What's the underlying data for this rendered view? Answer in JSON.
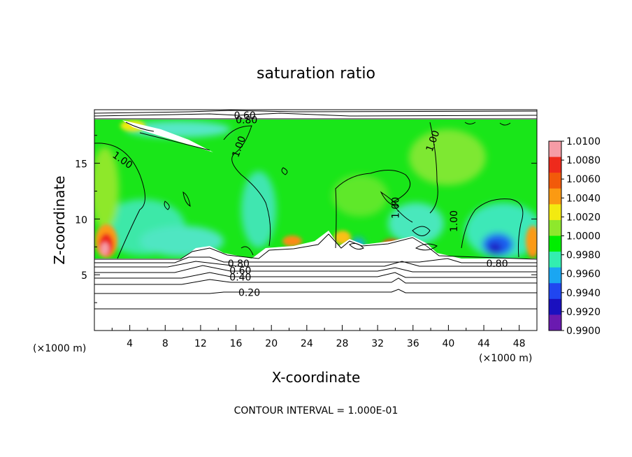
{
  "chart_data": {
    "type": "heatmap",
    "title": "saturation ratio",
    "xlabel": "X-coordinate",
    "ylabel": "Z-coordinate",
    "x_unit_label": "(×1000 m)",
    "y_unit_label": "(×1000 m)",
    "xlim": [
      0,
      50
    ],
    "ylim": [
      0,
      19.8
    ],
    "x_ticks": [
      4,
      8,
      12,
      16,
      20,
      24,
      28,
      32,
      36,
      40,
      44,
      48
    ],
    "y_ticks": [
      5,
      10,
      15
    ],
    "footer": "CONTOUR INTERVAL = 1.000E-01",
    "colorbar": {
      "labels": [
        "1.0100",
        "1.0080",
        "1.0060",
        "1.0040",
        "1.0020",
        "1.0000",
        "0.9980",
        "0.9960",
        "0.9940",
        "0.9920",
        "0.9900"
      ],
      "colors": [
        "#f59ca6",
        "#ee2a1c",
        "#f25a0a",
        "#fb9a12",
        "#f3ea10",
        "#8ee82c",
        "#00ee00",
        "#33eeb0",
        "#1aa6f2",
        "#2046f0",
        "#1a10bf",
        "#6a1ab0"
      ]
    },
    "contour_labels": [
      {
        "text": "0.60",
        "x": 17.0,
        "z": 19.3
      },
      {
        "text": "0.80",
        "x": 17.2,
        "z": 18.9
      },
      {
        "text": "1.00",
        "x": 3.2,
        "z": 15.3
      },
      {
        "text": "1.00",
        "x": 16.3,
        "z": 16.5
      },
      {
        "text": "1.00",
        "x": 34.0,
        "z": 11.0
      },
      {
        "text": "1.00",
        "x": 38.2,
        "z": 17.0
      },
      {
        "text": "1.00",
        "x": 40.6,
        "z": 9.8
      },
      {
        "text": "0.80",
        "x": 16.3,
        "z": 6.0
      },
      {
        "text": "0.60",
        "x": 16.5,
        "z": 5.4
      },
      {
        "text": "0.40",
        "x": 16.5,
        "z": 4.8
      },
      {
        "text": "0.20",
        "x": 17.5,
        "z": 3.4
      },
      {
        "text": "0.80",
        "x": 45.5,
        "z": 6.0
      }
    ],
    "regions": [
      {
        "level": "1.0100",
        "x": 1.5,
        "z": 8.0
      },
      {
        "level": "1.0000",
        "x": 25.0,
        "z": 13.0
      },
      {
        "level": "0.9980",
        "x": 8.0,
        "z": 10.0
      },
      {
        "level": "0.9900",
        "x": 45.0,
        "z": 8.0
      }
    ]
  }
}
